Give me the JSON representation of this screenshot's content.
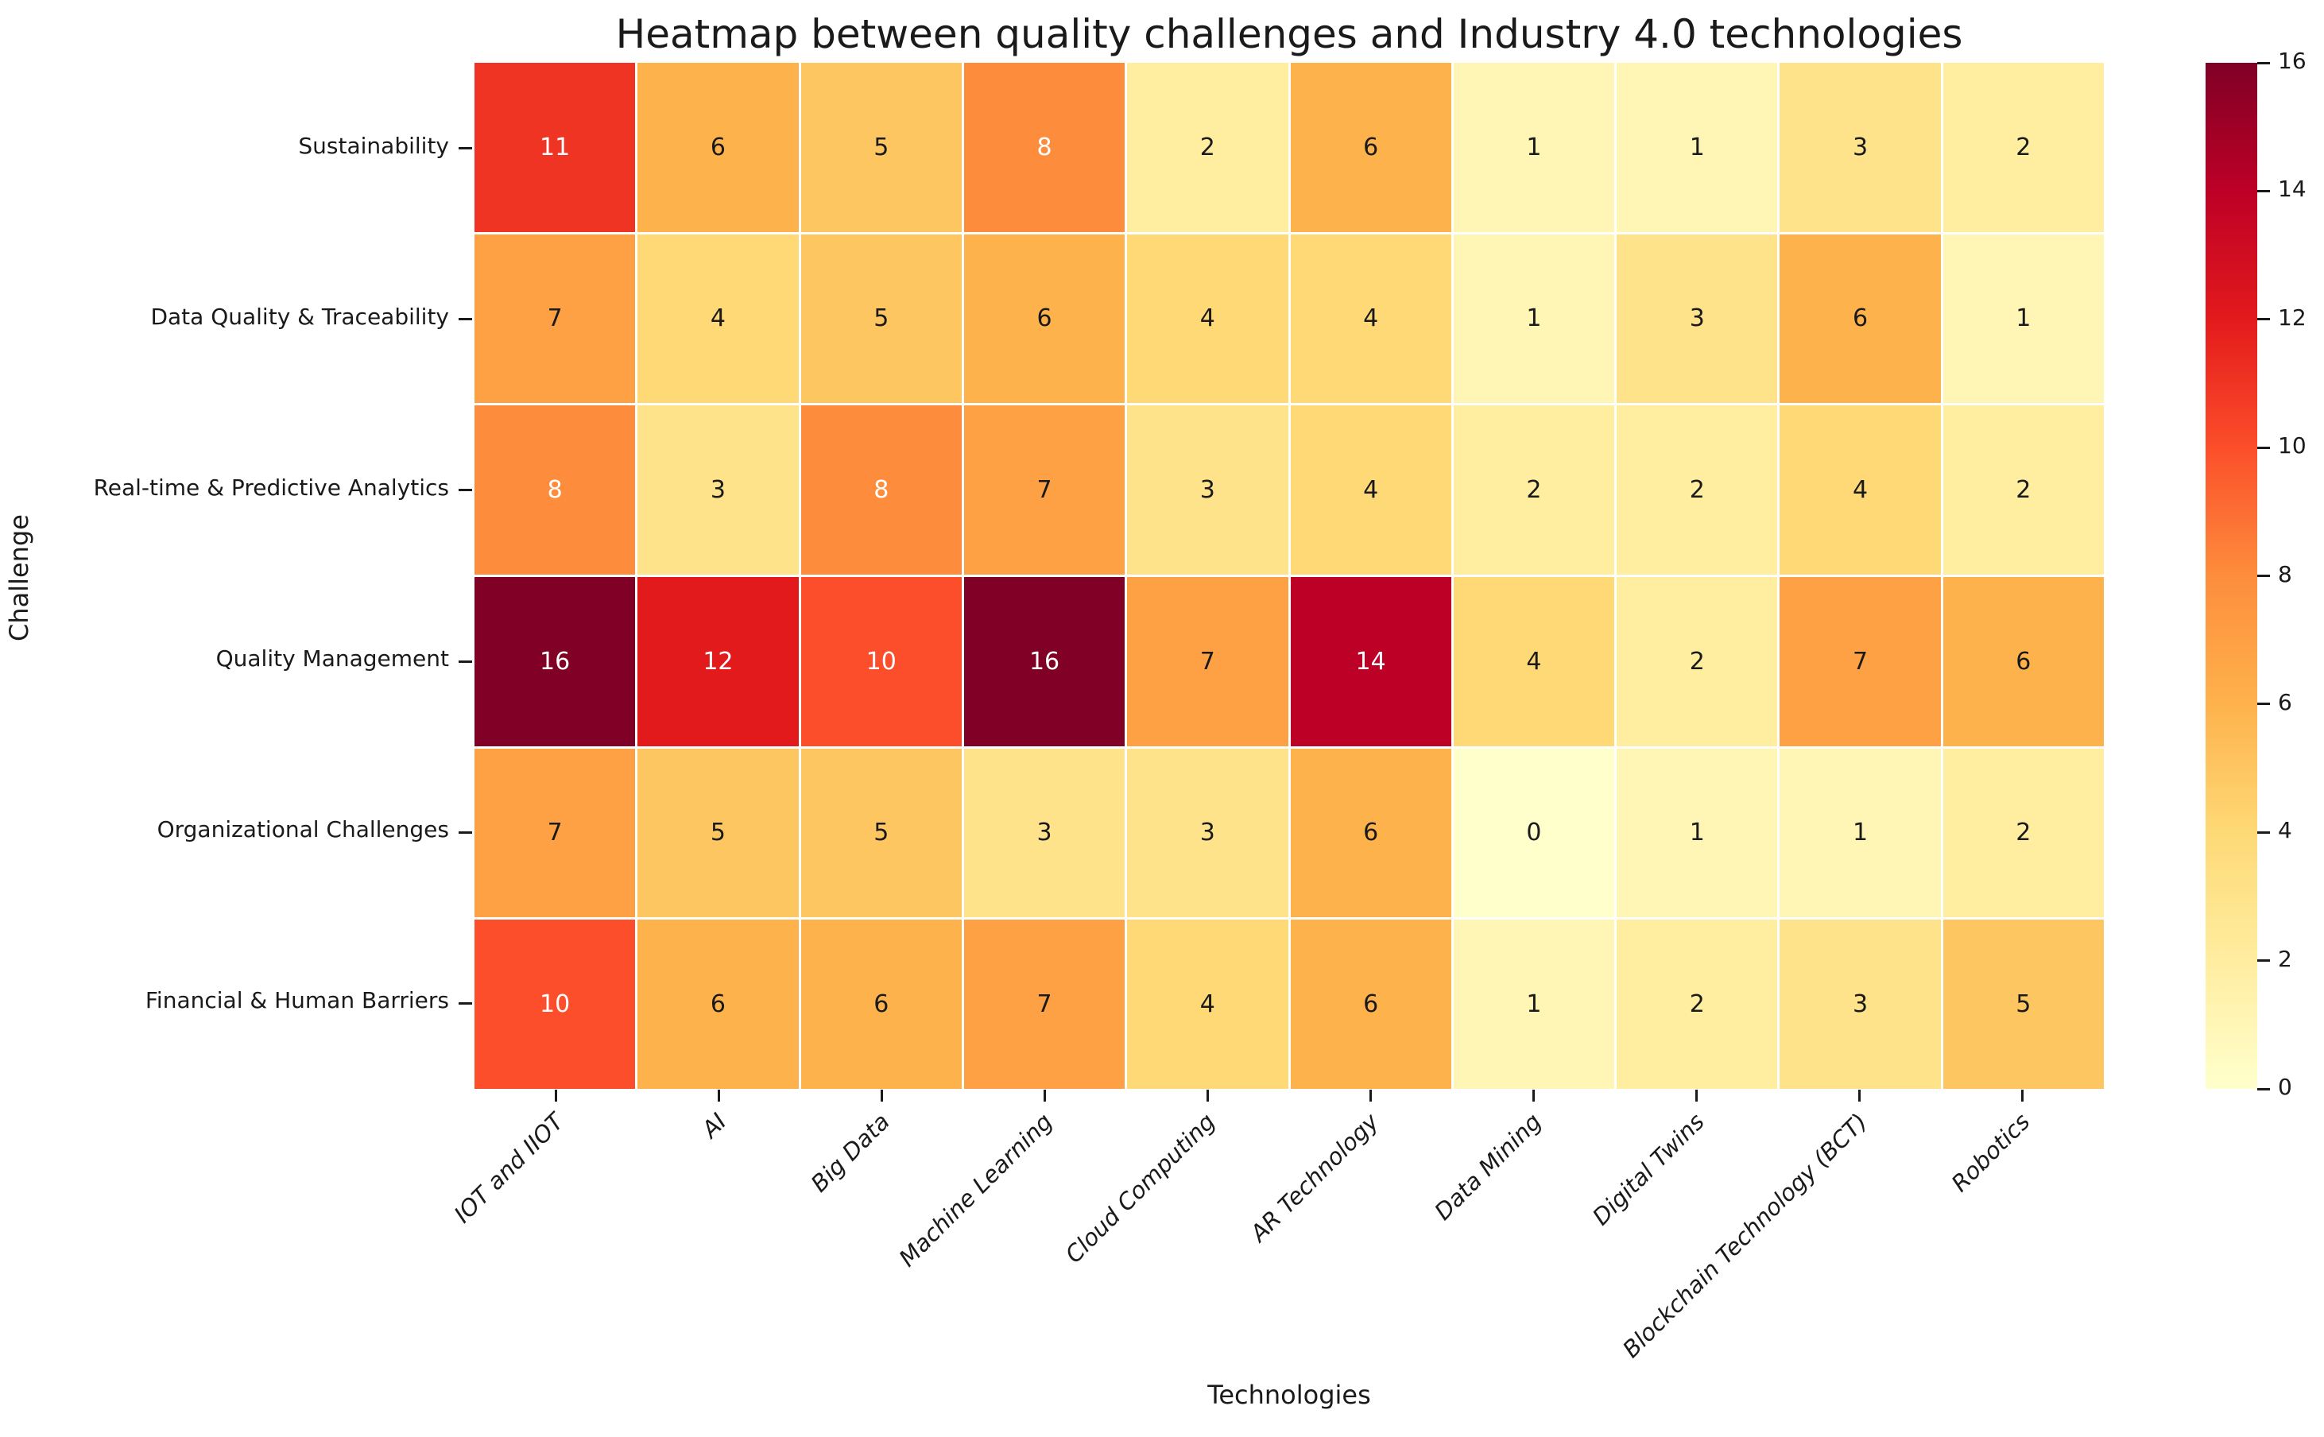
{
  "chart_data": {
    "type": "heatmap",
    "title": "Heatmap between quality challenges and Industry 4.0 technologies",
    "xlabel": "Technologies",
    "ylabel": "Challenge",
    "rows": [
      "Sustainability",
      "Data Quality & Traceability",
      "Real-time & Predictive Analytics",
      "Quality Management",
      "Organizational Challenges",
      "Financial & Human Barriers"
    ],
    "columns": [
      "IOT and IIOT",
      "AI",
      "Big Data",
      "Machine Learning",
      "Cloud Computing",
      "AR Technology",
      "Data Mining",
      "Digital Twins",
      "Blockchain Technology (BCT)",
      "Robotics"
    ],
    "values": [
      [
        11,
        6,
        5,
        8,
        2,
        6,
        1,
        1,
        3,
        2
      ],
      [
        7,
        4,
        5,
        6,
        4,
        4,
        1,
        3,
        6,
        1
      ],
      [
        8,
        3,
        8,
        7,
        3,
        4,
        2,
        2,
        4,
        2
      ],
      [
        16,
        12,
        10,
        16,
        7,
        14,
        4,
        2,
        7,
        6
      ],
      [
        7,
        5,
        5,
        3,
        3,
        6,
        0,
        1,
        1,
        2
      ],
      [
        10,
        6,
        6,
        7,
        4,
        6,
        1,
        2,
        3,
        5
      ]
    ],
    "vmin": 0,
    "vmax": 16,
    "colorbar_ticks": [
      0,
      2,
      4,
      6,
      8,
      10,
      12,
      14,
      16
    ],
    "colormap": "YlOrRd",
    "colormap_stops": [
      "#ffffcc",
      "#ffeda0",
      "#fed976",
      "#feb24c",
      "#fd8d3c",
      "#fc4e2a",
      "#e31a1c",
      "#bd0026",
      "#800026"
    ],
    "annotation_white_threshold": 8,
    "annotation_color_light": "#ffffff",
    "annotation_color_dark": "#1a1a1a",
    "grid_line_color": "#ffffff",
    "legend_position": "right"
  }
}
